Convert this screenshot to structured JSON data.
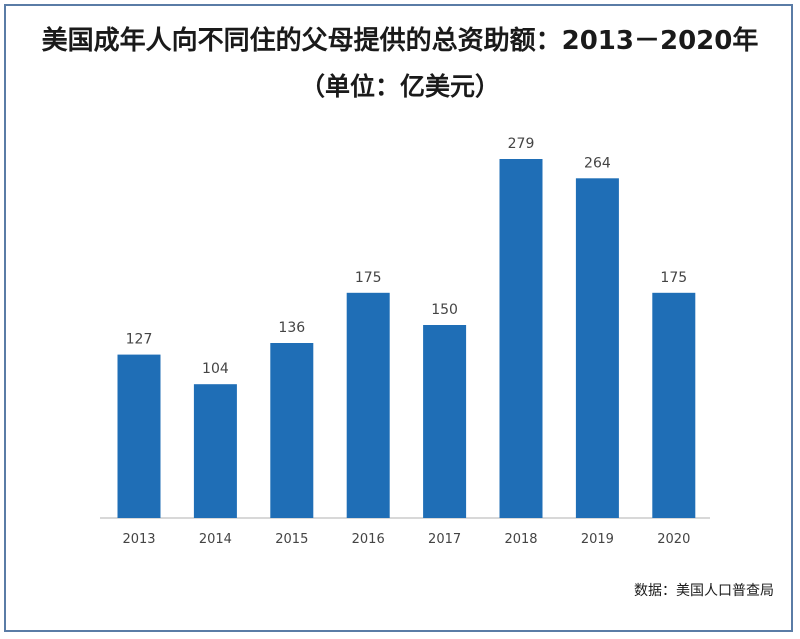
{
  "chart_data": {
    "type": "bar",
    "title": "美国成年人向不同住的父母提供的总资助额：2013－2020年",
    "subtitle": "（单位：亿美元）",
    "categories": [
      "2013",
      "2014",
      "2015",
      "2016",
      "2017",
      "2018",
      "2019",
      "2020"
    ],
    "values": [
      127,
      104,
      136,
      175,
      150,
      279,
      264,
      175
    ],
    "ylim": [
      0,
      279
    ],
    "grid": false,
    "bar_color": "#1f6eb6",
    "source": "数据：美国人口普查局"
  }
}
